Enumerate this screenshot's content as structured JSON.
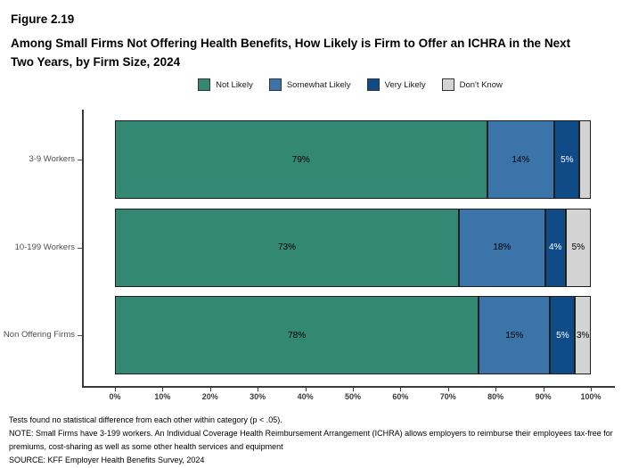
{
  "figure_label": "Figure 2.19",
  "title": "Among Small Firms Not Offering Health Benefits, How Likely is Firm to Offer an ICHRA in the Next Two Years, by Firm Size, 2024",
  "footer": {
    "tests_note": "Tests found no statistical difference from each other within category (p < .05).",
    "note": "NOTE: Small Firms have 3-199 workers. An Individual Coverage Health Reimbursement Arrangement (ICHRA) allows employers to reimburse their employees tax-free for premiums, cost-sharing as well as some other health services and equipment",
    "source": "SOURCE: KFF Employer Health Benefits Survey, 2024"
  },
  "chart_data": {
    "type": "bar",
    "orientation": "horizontal",
    "stacked": true,
    "grid": false,
    "legend_position": "top",
    "categories": [
      "3-9 Workers",
      "10-199 Workers",
      "Non Offering Firms"
    ],
    "series": [
      {
        "name": "Not Likely",
        "color": "#338873",
        "label_color": "#000000",
        "values": [
          79,
          73,
          78
        ],
        "labels": [
          "79%",
          "73%",
          "78%"
        ]
      },
      {
        "name": "Somewhat Likely",
        "color": "#3B74A8",
        "label_color": "#000000",
        "values": [
          14,
          18,
          15
        ],
        "labels": [
          "14%",
          "18%",
          "15%"
        ]
      },
      {
        "name": "Very Likely",
        "color": "#0F4B87",
        "label_color": "#FFFFFF",
        "values": [
          5,
          4,
          5
        ],
        "labels": [
          "5%",
          "4%",
          "5%"
        ]
      },
      {
        "name": "Don't Know",
        "color": "#D3D3D3",
        "label_color": "#000000",
        "values": [
          2,
          5,
          3
        ],
        "labels": [
          "",
          "5%",
          "3%"
        ]
      }
    ],
    "xlabel": "",
    "ylabel": "",
    "xlim": [
      0,
      100
    ],
    "x_ticks": [
      "0%",
      "10%",
      "20%",
      "30%",
      "40%",
      "50%",
      "60%",
      "70%",
      "80%",
      "90%",
      "100%"
    ],
    "axis_color": "#3a3a3a",
    "background_color": "#ffffff"
  }
}
